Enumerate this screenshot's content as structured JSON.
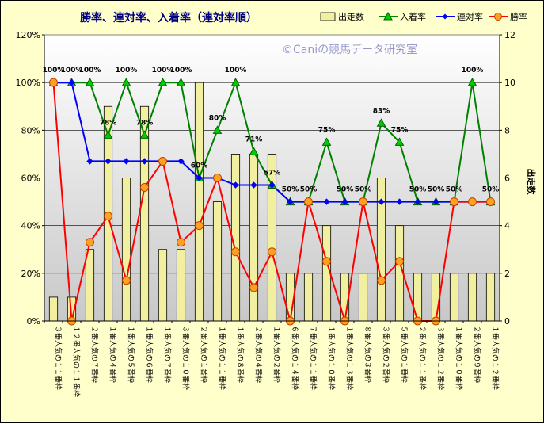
{
  "chart_data": {
    "type": "bar",
    "title": "勝率、連対率、入着率（連対率順）",
    "watermark": "©Caniの競馬データ研究室",
    "y2label": "出走数",
    "ylim": [
      0,
      120
    ],
    "y2lim": [
      0,
      12
    ],
    "yticks": [
      "0%",
      "20%",
      "40%",
      "60%",
      "80%",
      "100%",
      "120%"
    ],
    "y2ticks": [
      "0",
      "2",
      "4",
      "6",
      "8",
      "10",
      "12"
    ],
    "legend_position": "top-right",
    "categories": [
      "３番人気の１１番枠",
      "１２番人気の１１番枠",
      "２番人気の７番枠",
      "１番人気の４番枠",
      "１番人気の５番枠",
      "１番人気の６番枠",
      "１番人気の７番枠",
      "３番人気の１０番枠",
      "２番人気の１番枠",
      "１番人気の１１番枠",
      "１番人気の８番枠",
      "２番人気の４番枠",
      "１番人気の２番枠",
      "６番人気の１４番枠",
      "７番人気の１１番枠",
      "１番人気の１０番枠",
      "１番人気の１３番枠",
      "８番人気の３番枠",
      "３番人気の２番枠",
      "５番人気の１番枠",
      "２番人気の１１番枠",
      "３番人気の１２番枠",
      "１番人気の１０番枠",
      "２番人気の９番枠",
      "１番人気の１２番枠"
    ],
    "series": [
      {
        "name": "出走数",
        "type": "bar",
        "axis": "right",
        "color": "#f0f0a0",
        "values": [
          1,
          1,
          3,
          9,
          6,
          9,
          3,
          3,
          10,
          5,
          7,
          7,
          7,
          2,
          2,
          4,
          2,
          2,
          6,
          4,
          2,
          2,
          2,
          2,
          2
        ]
      },
      {
        "name": "入着率",
        "type": "line",
        "axis": "left",
        "color": "#008000",
        "marker": "triangle",
        "values": [
          100,
          100,
          100,
          78,
          100,
          78,
          100,
          100,
          60,
          80,
          100,
          71,
          57,
          50,
          50,
          75,
          50,
          50,
          83,
          75,
          50,
          50,
          50,
          100,
          50
        ]
      },
      {
        "name": "連対率",
        "type": "line",
        "axis": "left",
        "color": "#0000ff",
        "marker": "diamond",
        "values": [
          100,
          100,
          67,
          67,
          67,
          67,
          67,
          67,
          60,
          60,
          57,
          57,
          57,
          50,
          50,
          50,
          50,
          50,
          50,
          50,
          50,
          50,
          50,
          50,
          50
        ]
      },
      {
        "name": "勝率",
        "type": "line",
        "axis": "left",
        "color": "#ff0000",
        "marker": "circle",
        "values": [
          100,
          0,
          33,
          44,
          17,
          56,
          67,
          33,
          40,
          60,
          29,
          14,
          29,
          0,
          50,
          25,
          0,
          50,
          17,
          25,
          0,
          0,
          50,
          50,
          50
        ]
      }
    ],
    "data_labels": [
      "100%",
      "100%",
      "100%",
      "78%",
      "100%",
      "78%",
      "100%",
      "100%",
      "60%",
      "80%",
      "100%",
      "71%",
      "57%",
      "50%",
      "50%",
      "75%",
      "50%",
      "50%",
      "83%",
      "75%",
      "50%",
      "50%",
      "50%",
      "100%",
      "50%"
    ]
  }
}
